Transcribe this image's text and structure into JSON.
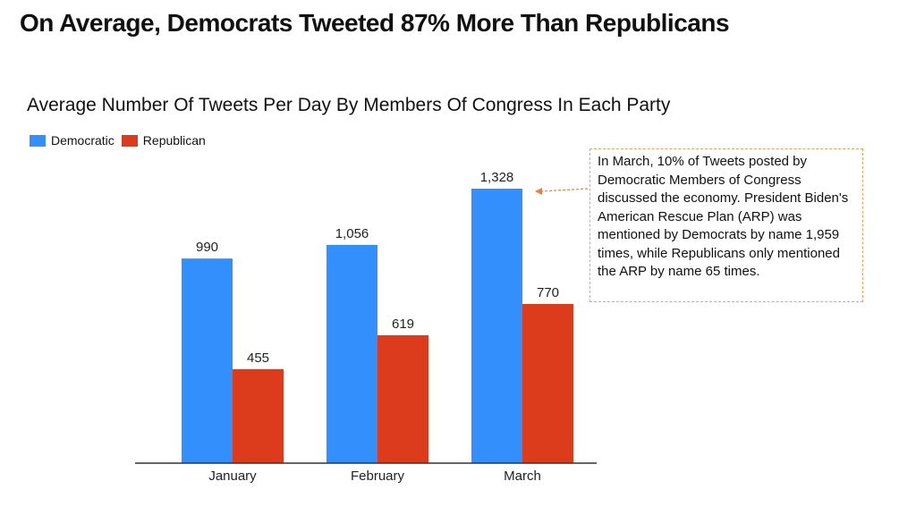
{
  "headline": "On Average, Democrats Tweeted 87% More Than Republicans",
  "annotation": {
    "text": "In March, 10% of Tweets posted by Democratic Members of Congress discussed the economy. President Biden's American Rescue Plan (ARP) was mentioned by Democrats by name 1,959 times, while Republicans only mentioned the ARP by name 65 times."
  },
  "colors": {
    "democratic": "#338ffb",
    "republican": "#dc3c1c",
    "axis": "#333333",
    "annotation_border": "#f0a060",
    "arrow": "#f08030"
  },
  "chart_data": {
    "type": "bar",
    "title": "Average Number Of Tweets Per Day By Members Of Congress In Each Party",
    "categories": [
      "January",
      "February",
      "March"
    ],
    "series": [
      {
        "name": "Democratic",
        "values": [
          990,
          1056,
          1328
        ],
        "labels": [
          "990",
          "1,056",
          "1,328"
        ]
      },
      {
        "name": "Republican",
        "values": [
          455,
          619,
          770
        ],
        "labels": [
          "455",
          "619",
          "770"
        ]
      }
    ],
    "xlabel": "",
    "ylabel": "",
    "ylim": [
      0,
      1328
    ],
    "grid": false,
    "legend": "top-left"
  }
}
